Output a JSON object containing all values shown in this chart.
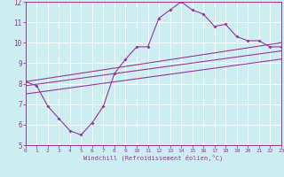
{
  "xlabel": "Windchill (Refroidissement éolien,°C)",
  "xlim": [
    0,
    23
  ],
  "ylim": [
    5,
    12
  ],
  "yticks": [
    5,
    6,
    7,
    8,
    9,
    10,
    11,
    12
  ],
  "xticks": [
    0,
    1,
    2,
    3,
    4,
    5,
    6,
    7,
    8,
    9,
    10,
    11,
    12,
    13,
    14,
    15,
    16,
    17,
    18,
    19,
    20,
    21,
    22,
    23
  ],
  "bg_color": "#cceef0",
  "line_color": "#993399",
  "grid_color": "#ffffff",
  "curve1_x": [
    0,
    1,
    2,
    3,
    4,
    5,
    6,
    7,
    8,
    9,
    10,
    11,
    12,
    13,
    14,
    15,
    16,
    17,
    18,
    19,
    20,
    21,
    22,
    23
  ],
  "curve1_y": [
    8.1,
    7.9,
    6.9,
    6.3,
    5.7,
    5.5,
    6.1,
    6.9,
    8.5,
    9.2,
    9.8,
    9.8,
    11.2,
    11.6,
    12.0,
    11.6,
    11.4,
    10.8,
    10.9,
    10.3,
    10.1,
    10.1,
    9.8,
    9.8
  ],
  "line1_x": [
    0,
    23
  ],
  "line1_y": [
    7.9,
    9.6
  ],
  "line2_x": [
    0,
    23
  ],
  "line2_y": [
    8.1,
    10.0
  ],
  "line3_x": [
    0,
    23
  ],
  "line3_y": [
    7.5,
    9.2
  ]
}
